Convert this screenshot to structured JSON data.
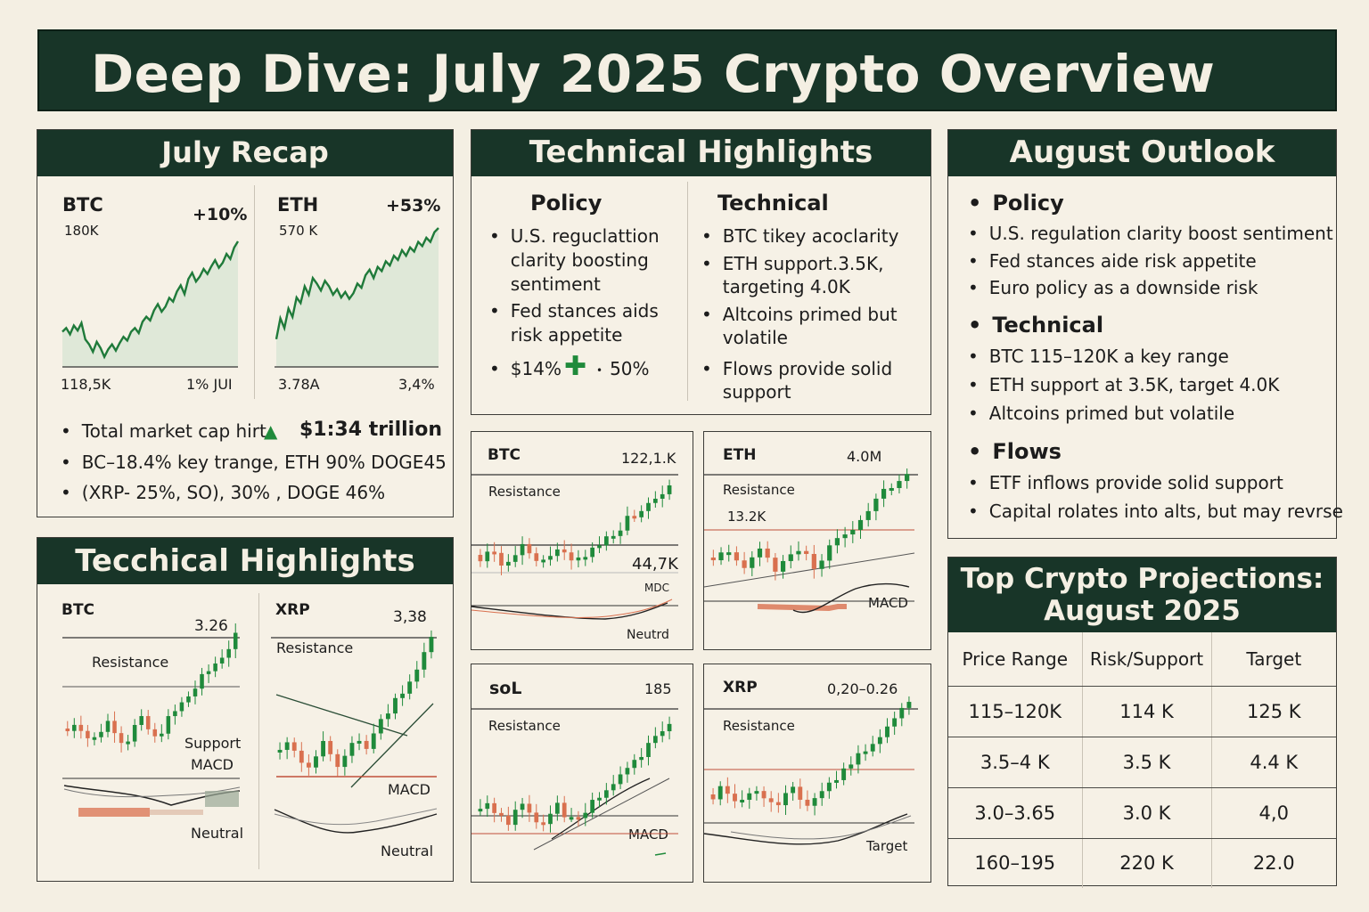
{
  "title": "Deep Dive: July 2025 Crypto Overview",
  "colors": {
    "header_bg": "#183528",
    "bg": "#f4efe3",
    "up": "#1f8a3b",
    "down": "#d9704f",
    "line": "#1f7a3a"
  },
  "july_recap": {
    "heading": "July Recap",
    "btc": {
      "name": "BTC",
      "change": "+10%",
      "value": "180K",
      "low_label": "118,5K",
      "high_label": "1% JUI",
      "series": [
        0.28,
        0.31,
        0.26,
        0.33,
        0.29,
        0.35,
        0.22,
        0.18,
        0.12,
        0.2,
        0.15,
        0.08,
        0.14,
        0.18,
        0.13,
        0.19,
        0.24,
        0.21,
        0.28,
        0.31,
        0.27,
        0.36,
        0.4,
        0.37,
        0.45,
        0.5,
        0.44,
        0.48,
        0.55,
        0.52,
        0.6,
        0.65,
        0.58,
        0.7,
        0.75,
        0.68,
        0.72,
        0.78,
        0.74,
        0.8,
        0.85,
        0.79,
        0.83,
        0.9,
        0.86,
        0.95,
        1.0
      ]
    },
    "eth": {
      "name": "ETH",
      "change": "+53%",
      "value": "570 K",
      "low_label": "3.78A",
      "high_label": "3,4%",
      "series": [
        0.2,
        0.35,
        0.28,
        0.42,
        0.36,
        0.5,
        0.46,
        0.58,
        0.52,
        0.64,
        0.6,
        0.55,
        0.62,
        0.58,
        0.52,
        0.56,
        0.5,
        0.54,
        0.49,
        0.53,
        0.6,
        0.57,
        0.66,
        0.7,
        0.64,
        0.72,
        0.69,
        0.76,
        0.73,
        0.8,
        0.77,
        0.84,
        0.8,
        0.86,
        0.83,
        0.9,
        0.87,
        0.93,
        0.9,
        0.97,
        1.0
      ]
    },
    "bullets": [
      "Total market cap hirt",
      "BC–18.4% key trange, ETH 90%   DOGE45",
      "(XRP- 25%, SO), 30% , DOGE 46%"
    ],
    "market_cap_value": "$1:34 trillion"
  },
  "tech_left": {
    "heading": "Tecchical Highlights",
    "btc": {
      "name": "BTC",
      "value": "3.26",
      "resistance": "Resistance",
      "support": "Support",
      "macd": "MACD",
      "neutral": "Neutral"
    },
    "xrp": {
      "name": "XRP",
      "value": "3,38",
      "resistance": "Resistance",
      "macd": "MACD",
      "neutral": "Neutral"
    }
  },
  "tech_mid": {
    "heading": "Technical Highlights",
    "policy": {
      "title": "Policy",
      "items": [
        "U.S. reguclattion\nclarity boosting\nsentiment",
        "Fed stances aids\nrisk appetite"
      ],
      "stat_a": "$14%",
      "stat_b": "50%"
    },
    "technical": {
      "title": "Technical",
      "items": [
        "BTC tikey acoclarity",
        "ETH support.3.5K,\ntargeting 4.0K",
        "Altcoins primed but\nvolatile",
        "Flows provide solid\nsupport"
      ]
    }
  },
  "mini_charts": {
    "btc": {
      "name": "BTC",
      "value": "122,1.K",
      "resistance": "Resistance",
      "level": "44,7K",
      "macd": "MDC",
      "neutral": "Neutrd"
    },
    "eth": {
      "name": "ETH",
      "value": "4.0M",
      "resistance": "Resistance",
      "level": "13.2K",
      "macd": "MACD"
    },
    "sol": {
      "name": "soL",
      "value": "185",
      "resistance": "Resistance",
      "macd": "MACD"
    },
    "xrp": {
      "name": "XRP",
      "value": "0,20–0.26",
      "resistance": "Resistance",
      "target": "Target"
    }
  },
  "august": {
    "heading": "August Outlook",
    "sections": [
      {
        "title": "Policy",
        "items": [
          "U.S. regulation clarity boost sentiment",
          "Fed stances aide risk appetite",
          "Euro policy as a downside risk"
        ]
      },
      {
        "title": "Technical",
        "items": [
          "BTC 115–120K a key range",
          "ETH support at 3.5K, target  4.0K",
          "Altcoins primed but volatile"
        ]
      },
      {
        "title": "Flows",
        "items": [
          "ETF inflows provide solid support",
          "Capital rolates into alts, but may revrse"
        ]
      }
    ]
  },
  "projections": {
    "heading_line1": "Top Crypto Projections:",
    "heading_line2": "August 2025",
    "columns": [
      "Price Range",
      "Risk/Support",
      "Target"
    ],
    "rows": [
      [
        "115–120K",
        "114 K",
        "125 K"
      ],
      [
        "3.5–4 K",
        "3.5 K",
        "4.4 K"
      ],
      [
        "3.0–3.65",
        "3.0 K",
        "4,0"
      ],
      [
        "160–195",
        "220 K",
        "22.0"
      ]
    ]
  }
}
